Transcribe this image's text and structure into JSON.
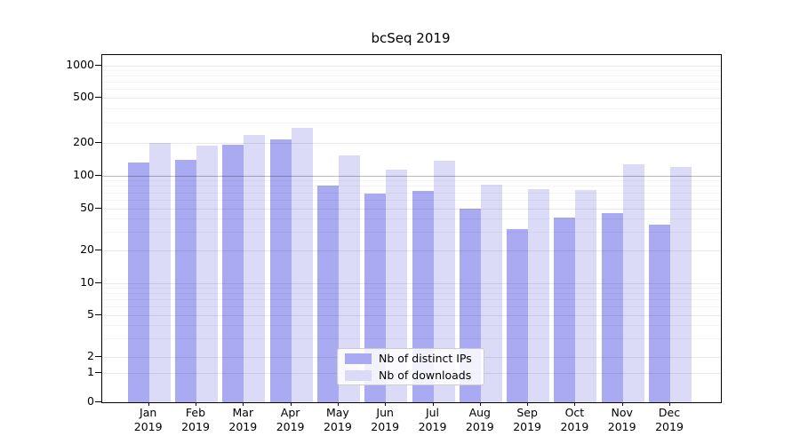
{
  "title": "bcSeq 2019",
  "chart_data": {
    "type": "bar",
    "title": "bcSeq 2019",
    "categories": [
      "Jan 2019",
      "Feb 2019",
      "Mar 2019",
      "Apr 2019",
      "May 2019",
      "Jun 2019",
      "Jul 2019",
      "Aug 2019",
      "Sep 2019",
      "Oct 2019",
      "Nov 2019",
      "Dec 2019"
    ],
    "series": [
      {
        "name": "Nb of distinct IPs",
        "color": "#aaaaf2",
        "values": [
          130,
          139,
          190,
          213,
          81,
          68,
          72,
          50,
          32,
          41,
          45,
          35
        ]
      },
      {
        "name": "Nb of downloads",
        "color": "#dbdbf8",
        "values": [
          197,
          186,
          235,
          270,
          152,
          113,
          137,
          82,
          75,
          73,
          126,
          119
        ]
      }
    ],
    "xlabel": "",
    "ylabel": "",
    "yscale": "symlog",
    "y_ticks": [
      0,
      1,
      2,
      5,
      10,
      20,
      50,
      100,
      200,
      500,
      1000
    ],
    "y_minor_gridlines": [
      3,
      4,
      6,
      7,
      8,
      9,
      30,
      40,
      60,
      70,
      80,
      90,
      300,
      400,
      600,
      700,
      800,
      900
    ],
    "ylim": [
      0,
      1250
    ],
    "grid": true,
    "legend_position": "lower center",
    "bar_edge_color": "none"
  },
  "legend": {
    "items": [
      {
        "label": "Nb of distinct IPs",
        "color": "#aaaaf2"
      },
      {
        "label": "Nb of downloads",
        "color": "#dbdbf8"
      }
    ]
  }
}
